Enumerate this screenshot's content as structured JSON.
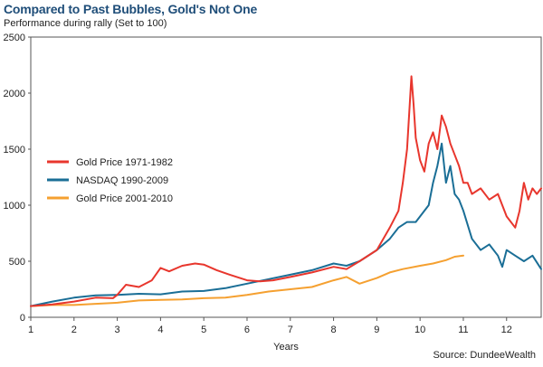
{
  "chart_data": {
    "type": "line",
    "title": "Compared to Past Bubbles, Gold's Not One",
    "subtitle": "Performance during rally (Set to 100)",
    "xlabel": "Years",
    "ylabel": "",
    "source": "Source: DundeeWealth",
    "xlim": [
      1,
      12.8
    ],
    "ylim": [
      0,
      2500
    ],
    "x_ticks": [
      "1",
      "2",
      "3",
      "4",
      "5",
      "6",
      "7",
      "8",
      "9",
      "10",
      "11",
      "12"
    ],
    "y_ticks": [
      "0",
      "500",
      "1000",
      "1500",
      "2000",
      "2500"
    ],
    "grid": false,
    "legend_position": "center-right",
    "series": [
      {
        "name": "Gold Price 1971-1982",
        "color": "#e8362d",
        "x": [
          1.0,
          1.5,
          2.0,
          2.5,
          2.9,
          3.0,
          3.2,
          3.5,
          3.8,
          4.0,
          4.2,
          4.5,
          4.8,
          5.0,
          5.3,
          5.6,
          6.0,
          6.3,
          6.6,
          7.0,
          7.5,
          8.0,
          8.3,
          8.6,
          9.0,
          9.3,
          9.5,
          9.6,
          9.7,
          9.8,
          9.85,
          9.9,
          10.0,
          10.1,
          10.2,
          10.3,
          10.4,
          10.5,
          10.6,
          10.7,
          10.8,
          10.9,
          11.0,
          11.1,
          11.2,
          11.4,
          11.6,
          11.8,
          11.9,
          12.0,
          12.2,
          12.3,
          12.4,
          12.5,
          12.6,
          12.7,
          12.8
        ],
        "values": [
          100,
          115,
          140,
          175,
          170,
          200,
          290,
          270,
          330,
          440,
          410,
          460,
          480,
          470,
          420,
          380,
          330,
          320,
          330,
          360,
          400,
          450,
          430,
          500,
          600,
          800,
          950,
          1200,
          1500,
          2150,
          1900,
          1600,
          1400,
          1300,
          1550,
          1650,
          1500,
          1800,
          1700,
          1550,
          1450,
          1350,
          1200,
          1200,
          1100,
          1150,
          1050,
          1100,
          1000,
          900,
          800,
          950,
          1200,
          1050,
          1150,
          1100,
          1150
        ]
      },
      {
        "name": "NASDAQ 1990-2009",
        "color": "#1a6e96",
        "x": [
          1.0,
          1.5,
          2.0,
          2.5,
          3.0,
          3.5,
          4.0,
          4.5,
          5.0,
          5.5,
          6.0,
          6.5,
          7.0,
          7.5,
          8.0,
          8.3,
          8.6,
          9.0,
          9.3,
          9.5,
          9.7,
          9.9,
          10.0,
          10.2,
          10.3,
          10.4,
          10.5,
          10.6,
          10.7,
          10.8,
          10.9,
          11.0,
          11.2,
          11.4,
          11.6,
          11.8,
          11.9,
          12.0,
          12.2,
          12.4,
          12.6,
          12.8
        ],
        "values": [
          100,
          140,
          175,
          195,
          200,
          210,
          205,
          230,
          235,
          260,
          300,
          340,
          380,
          420,
          480,
          460,
          500,
          600,
          700,
          800,
          850,
          850,
          900,
          1000,
          1200,
          1350,
          1550,
          1200,
          1350,
          1100,
          1050,
          950,
          700,
          600,
          650,
          550,
          450,
          600,
          550,
          500,
          550,
          430
        ]
      },
      {
        "name": "Gold Price 2001-2010",
        "color": "#f5a030",
        "x": [
          1.0,
          1.5,
          2.0,
          2.5,
          3.0,
          3.5,
          4.0,
          4.5,
          5.0,
          5.5,
          6.0,
          6.5,
          7.0,
          7.5,
          8.0,
          8.3,
          8.6,
          9.0,
          9.3,
          9.6,
          10.0,
          10.3,
          10.6,
          10.8,
          11.0
        ],
        "values": [
          100,
          110,
          110,
          120,
          130,
          150,
          155,
          160,
          170,
          175,
          200,
          230,
          250,
          270,
          330,
          360,
          300,
          350,
          400,
          430,
          460,
          480,
          510,
          540,
          550
        ]
      }
    ]
  }
}
